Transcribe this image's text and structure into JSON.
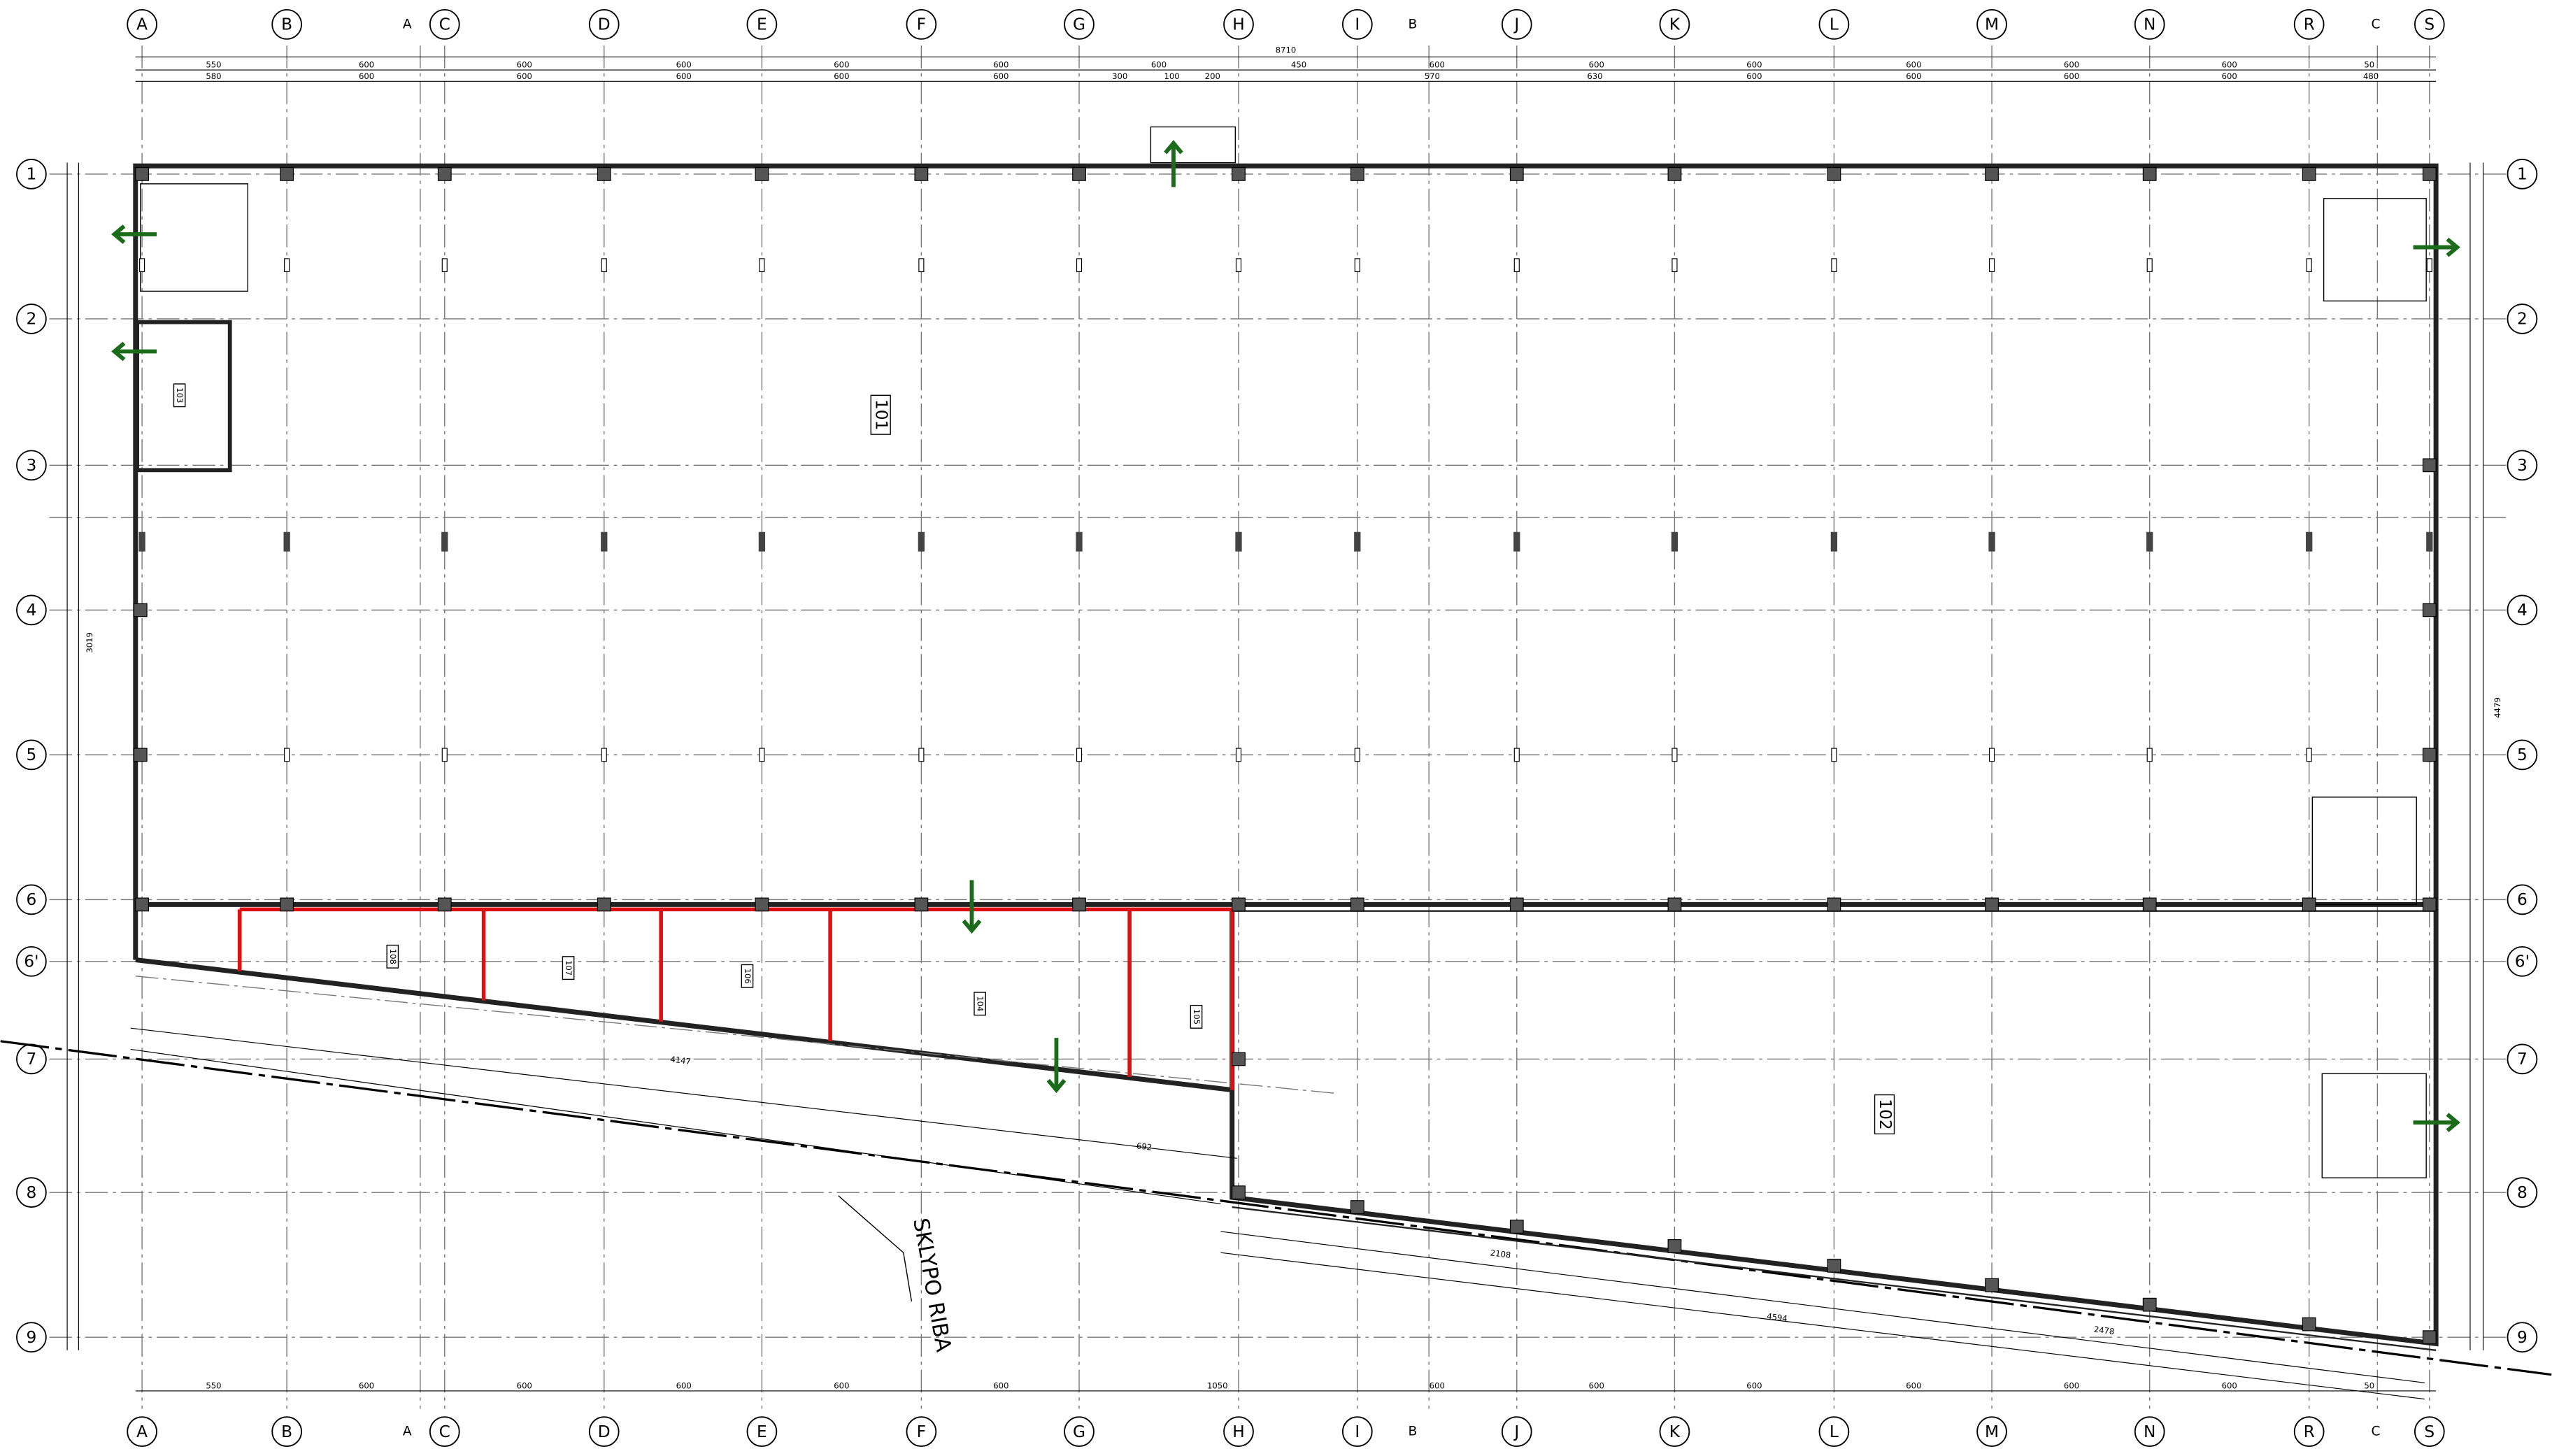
{
  "plan": {
    "columns": [
      "A",
      "B",
      "C",
      "D",
      "E",
      "F",
      "G",
      "H",
      "I",
      "J",
      "K",
      "L",
      "M",
      "N",
      "R",
      "S"
    ],
    "rows": [
      "1",
      "2",
      "3",
      "4",
      "5",
      "6",
      "6'",
      "7",
      "8",
      "9"
    ],
    "sections": [
      "A",
      "B",
      "C"
    ],
    "overall_dim": "8710",
    "dims_top_1": [
      550,
      600,
      600,
      600,
      600,
      600,
      600,
      450,
      600,
      600,
      600,
      600,
      600,
      600,
      50
    ],
    "dims_top_2": [
      580,
      600,
      600,
      600,
      600,
      600,
      300,
      100,
      200,
      570,
      630,
      600,
      600,
      600,
      600,
      480
    ],
    "dims_bottom": [
      550,
      600,
      600,
      600,
      600,
      600,
      1050,
      600,
      600,
      600,
      600,
      600,
      600,
      50
    ],
    "rooms": [
      "101",
      "102",
      "103",
      "104",
      "105",
      "106",
      "107",
      "108"
    ],
    "diagonal_dims": [
      4147,
      692,
      2108,
      4594,
      2478
    ],
    "side_dims": [
      3019,
      4479
    ],
    "plot_boundary": "SKLYPO RIBA"
  }
}
